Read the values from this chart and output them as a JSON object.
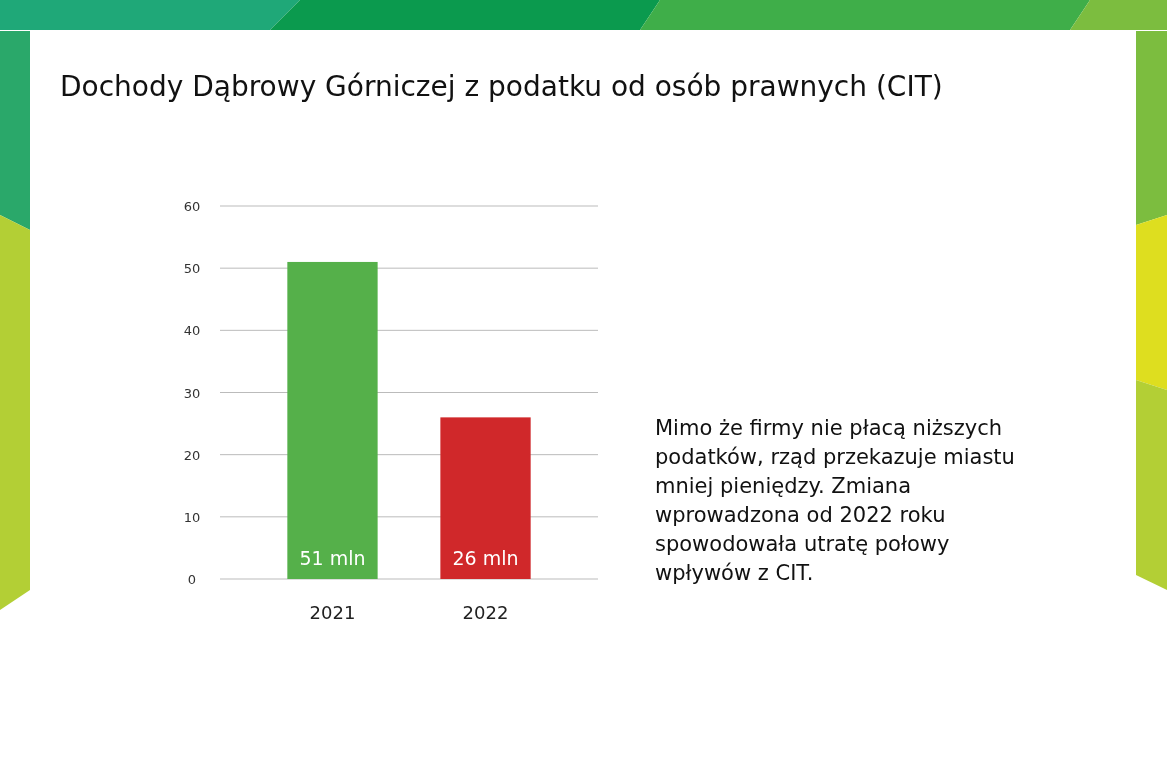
{
  "chart_data": {
    "type": "bar",
    "title": "Dochody Dąbrowy Górniczej z podatku od osób prawnych (CIT)",
    "categories": [
      "2021",
      "2022"
    ],
    "values": [
      51,
      26
    ],
    "colors": [
      "#55b04a",
      "#d0282a"
    ],
    "value_labels": [
      "51 mln",
      "26 mln"
    ],
    "ylim": [
      0,
      60
    ],
    "yticks": [
      0,
      10,
      20,
      30,
      40,
      50,
      60
    ],
    "grid": "y",
    "annotations": [
      "Mimo że firmy nie płacą niższych podatków, rząd przekazuje miastu mniej pieniędzy. Zmiana wprowadzona od 2022 roku spowodowała utratę połowy wpływów z CIT."
    ]
  }
}
